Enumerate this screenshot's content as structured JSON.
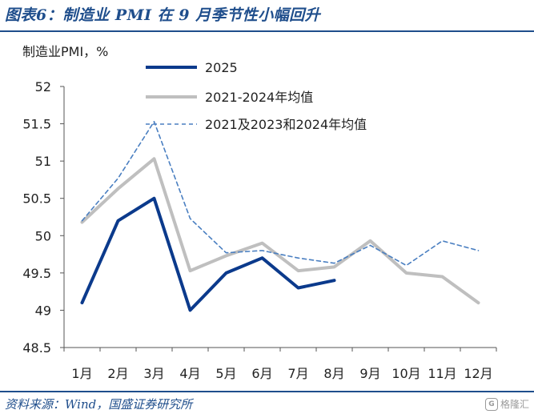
{
  "figure_title": "图表6：制造业 PMI 在 9 月季节性小幅回升",
  "source": "资料来源：Wind，国盛证券研究所",
  "watermark": {
    "text": "格隆汇",
    "icon": "gelonghui-logo-icon"
  },
  "chart_data": {
    "type": "line",
    "ylabel": "制造业PMI，%",
    "ylim": [
      48.5,
      52
    ],
    "yticks": [
      "48.5",
      "49",
      "49.5",
      "50",
      "50.5",
      "51",
      "51.5",
      "52"
    ],
    "ytick_values": [
      48.5,
      49,
      49.5,
      50,
      50.5,
      51,
      51.5,
      52
    ],
    "categories": [
      "1月",
      "2月",
      "3月",
      "4月",
      "5月",
      "6月",
      "7月",
      "8月",
      "9月",
      "10月",
      "11月",
      "12月"
    ],
    "grid": false,
    "legend_position": "top",
    "series": [
      {
        "name": "2025",
        "color": "#0b3a8c",
        "style": "solid-thick",
        "values": [
          49.1,
          50.2,
          50.5,
          49.0,
          49.5,
          49.7,
          49.3,
          49.4,
          null,
          null,
          null,
          null
        ]
      },
      {
        "name": "2021-2024年均值",
        "color": "#bfbfbf",
        "style": "solid-thick",
        "values": [
          50.18,
          50.63,
          51.03,
          49.53,
          49.73,
          49.9,
          49.53,
          49.58,
          49.93,
          49.5,
          49.45,
          49.1
        ]
      },
      {
        "name": "2021及2023和2024年均值",
        "color": "#4a7fc1",
        "style": "dashed",
        "values": [
          50.2,
          50.77,
          51.53,
          50.23,
          49.77,
          49.8,
          49.7,
          49.63,
          49.87,
          49.6,
          49.93,
          49.8
        ]
      }
    ]
  }
}
